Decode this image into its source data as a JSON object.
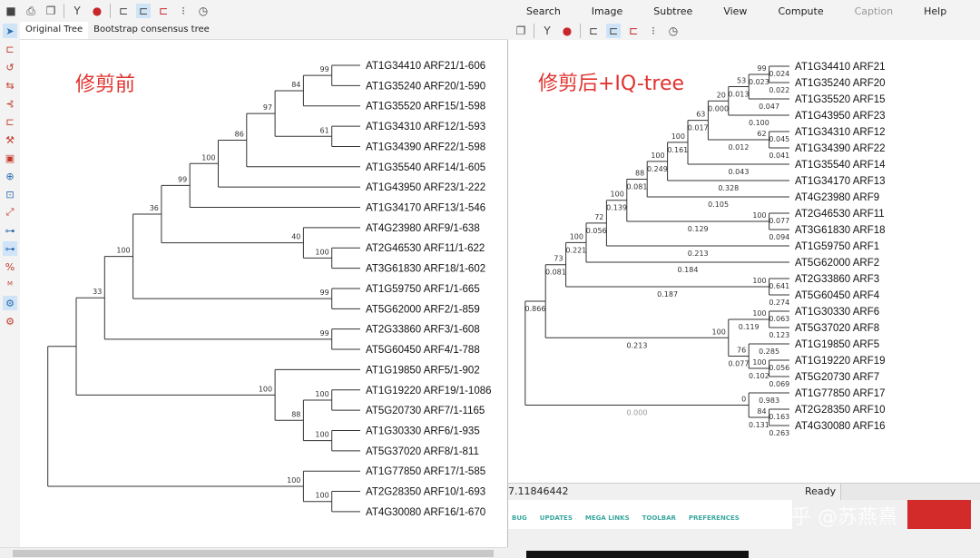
{
  "right_window": {
    "menu": [
      "Search",
      "Image",
      "Subtree",
      "View",
      "Compute",
      "Caption",
      "Help"
    ],
    "menu_disabled": [
      "Caption"
    ],
    "toolbar_icons": [
      "copy-icon",
      "options-icon",
      "info-icon",
      "tree-style-1-icon",
      "tree-style-2-icon",
      "tree-style-3-icon",
      "node-icon",
      "clock-icon"
    ],
    "status_left": "7.11846442",
    "status_right": "Ready",
    "strip_items": [
      "BUG",
      "UPDATES",
      "MEGA LINKS",
      "TOOLBAR",
      "PREFERENCES"
    ],
    "watermark": "知乎 @苏燕熹",
    "annotation": "修剪后+IQ-tree"
  },
  "left_window": {
    "toolbar_icons": [
      "save-icon",
      "print-icon",
      "copy-icon",
      "options-icon",
      "info-icon",
      "tree-style-1-icon",
      "tree-style-2-icon",
      "tree-style-3-icon",
      "node-icon",
      "clock-icon"
    ],
    "tabs": [
      "Original Tree",
      "Bootstrap consensus tree"
    ],
    "active_tab": "Original Tree",
    "annotation": "修剪前"
  },
  "colors": {
    "annotation": "#e0332f",
    "info": "#c8262b",
    "selected": "#cfe4f7",
    "muted_length": "#999999"
  },
  "left_tree": {
    "children": [
      {
        "children": [
          {
            "bs": "33",
            "children": [
              {
                "bs": "100",
                "children": [
                  {
                    "bs": "36",
                    "children": [
                      {
                        "bs": "99",
                        "children": [
                          {
                            "bs": "100",
                            "children": [
                              {
                                "bs": "86",
                                "children": [
                                  {
                                    "bs": "97",
                                    "children": [
                                      {
                                        "bs": "84",
                                        "children": [
                                          {
                                            "bs": "99",
                                            "children": [
                                              {
                                                "name": "AT1G34410 ARF21/1-606"
                                              },
                                              {
                                                "name": "AT1G35240 ARF20/1-590"
                                              }
                                            ]
                                          },
                                          {
                                            "name": "AT1G35520 ARF15/1-598"
                                          }
                                        ]
                                      },
                                      {
                                        "bs": "61",
                                        "children": [
                                          {
                                            "name": "AT1G34310 ARF12/1-593"
                                          },
                                          {
                                            "name": "AT1G34390 ARF22/1-598"
                                          }
                                        ]
                                      }
                                    ]
                                  },
                                  {
                                    "name": "AT1G35540 ARF14/1-605"
                                  }
                                ]
                              },
                              {
                                "name": "AT1G43950 ARF23/1-222"
                              }
                            ]
                          },
                          {
                            "name": "AT1G34170 ARF13/1-546"
                          }
                        ]
                      },
                      {
                        "bs": "40",
                        "children": [
                          {
                            "name": "AT4G23980 ARF9/1-638"
                          },
                          {
                            "bs": "100",
                            "children": [
                              {
                                "name": "AT2G46530 ARF11/1-622"
                              },
                              {
                                "name": "AT3G61830 ARF18/1-602"
                              }
                            ]
                          }
                        ]
                      }
                    ]
                  },
                  {
                    "bs": "99",
                    "children": [
                      {
                        "name": "AT1G59750 ARF1/1-665"
                      },
                      {
                        "name": "AT5G62000 ARF2/1-859"
                      }
                    ]
                  }
                ]
              },
              {
                "bs": "99",
                "children": [
                  {
                    "name": "AT2G33860 ARF3/1-608"
                  },
                  {
                    "name": "AT5G60450 ARF4/1-788"
                  }
                ]
              }
            ]
          },
          {
            "bs": "100",
            "children": [
              {
                "name": "AT1G19850 ARF5/1-902"
              },
              {
                "bs": "88",
                "children": [
                  {
                    "bs": "100",
                    "children": [
                      {
                        "name": "AT1G19220 ARF19/1-1086"
                      },
                      {
                        "name": "AT5G20730 ARF7/1-1165"
                      }
                    ]
                  },
                  {
                    "bs": "100",
                    "children": [
                      {
                        "name": "AT1G30330 ARF6/1-935"
                      },
                      {
                        "name": "AT5G37020 ARF8/1-811"
                      }
                    ]
                  }
                ]
              }
            ]
          }
        ]
      },
      {
        "bs": "100",
        "children": [
          {
            "name": "AT1G77850 ARF17/1-585"
          },
          {
            "bs": "100",
            "children": [
              {
                "name": "AT2G28350 ARF10/1-693"
              },
              {
                "name": "AT4G30080 ARF16/1-670"
              }
            ]
          }
        ]
      }
    ]
  },
  "right_tree": {
    "children": [
      {
        "len": "0.866",
        "children": [
          {
            "bs": "73",
            "len": "0.081",
            "children": [
              {
                "bs": "100",
                "len": "0.221",
                "children": [
                  {
                    "bs": "72",
                    "len": "0.056",
                    "children": [
                      {
                        "bs": "100",
                        "len": "0.139",
                        "children": [
                          {
                            "bs": "88",
                            "len": "0.081",
                            "children": [
                              {
                                "bs": "100",
                                "len": "0.249",
                                "children": [
                                  {
                                    "bs": "100",
                                    "len": "0.161",
                                    "children": [
                                      {
                                        "bs": "63",
                                        "len": "0.017",
                                        "children": [
                                          {
                                            "bs": "20",
                                            "len": "0.000",
                                            "children": [
                                              {
                                                "bs": "53",
                                                "len": "0.013",
                                                "children": [
                                                  {
                                                    "bs": "99",
                                                    "len": "0.023",
                                                    "children": [
                                                      {
                                                        "name": "AT1G34410 ARF21",
                                                        "len": "0.024"
                                                      },
                                                      {
                                                        "name": "AT1G35240 ARF20",
                                                        "len": "0.022"
                                                      }
                                                    ]
                                                  },
                                                  {
                                                    "name": "AT1G35520 ARF15",
                                                    "len": "0.047"
                                                  }
                                                ]
                                              },
                                              {
                                                "name": "AT1G43950 ARF23",
                                                "len": "0.100"
                                              }
                                            ]
                                          },
                                          {
                                            "bs": "62",
                                            "len": "0.012",
                                            "children": [
                                              {
                                                "name": "AT1G34310 ARF12",
                                                "len": "0.045"
                                              },
                                              {
                                                "name": "AT1G34390 ARF22",
                                                "len": "0.041"
                                              }
                                            ]
                                          }
                                        ]
                                      },
                                      {
                                        "name": "AT1G35540 ARF14",
                                        "len": "0.043"
                                      }
                                    ]
                                  },
                                  {
                                    "name": "AT1G34170 ARF13",
                                    "len": "0.328"
                                  }
                                ]
                              },
                              {
                                "name": "AT4G23980 ARF9",
                                "len": "0.105"
                              }
                            ]
                          },
                          {
                            "bs": "100",
                            "len": "0.129",
                            "children": [
                              {
                                "name": "AT2G46530 ARF11",
                                "len": "0.077"
                              },
                              {
                                "name": "AT3G61830 ARF18",
                                "len": "0.094"
                              }
                            ]
                          }
                        ]
                      },
                      {
                        "name": "AT1G59750 ARF1",
                        "len": "0.213"
                      }
                    ]
                  },
                  {
                    "name": "AT5G62000 ARF2",
                    "len": "0.184"
                  }
                ]
              },
              {
                "bs": "100",
                "len": "0.187",
                "children": [
                  {
                    "name": "AT2G33860 ARF3",
                    "len": "0.641"
                  },
                  {
                    "name": "AT5G60450 ARF4",
                    "len": "0.274"
                  }
                ]
              }
            ]
          },
          {
            "bs": "100",
            "len": "0.213",
            "children": [
              {
                "bs": "100",
                "len": "0.119",
                "children": [
                  {
                    "name": "AT1G30330 ARF6",
                    "len": "0.063"
                  },
                  {
                    "name": "AT5G37020 ARF8",
                    "len": "0.123"
                  }
                ]
              },
              {
                "bs": "76",
                "len": "0.077",
                "children": [
                  {
                    "name": "AT1G19850 ARF5",
                    "len": "0.285"
                  },
                  {
                    "bs": "100",
                    "len": "0.102",
                    "children": [
                      {
                        "name": "AT1G19220 ARF19",
                        "len": "0.056"
                      },
                      {
                        "name": "AT5G20730 ARF7",
                        "len": "0.069"
                      }
                    ]
                  }
                ]
              }
            ]
          }
        ]
      },
      {
        "bs": "0",
        "len": "0.000",
        "muted": true,
        "children": [
          {
            "name": "AT1G77850 ARF17",
            "len": "0.983"
          },
          {
            "bs": "84",
            "len": "0.131",
            "children": [
              {
                "name": "AT2G28350 ARF10",
                "len": "0.163"
              },
              {
                "name": "AT4G30080 ARF16",
                "len": "0.263"
              }
            ]
          }
        ]
      }
    ]
  }
}
